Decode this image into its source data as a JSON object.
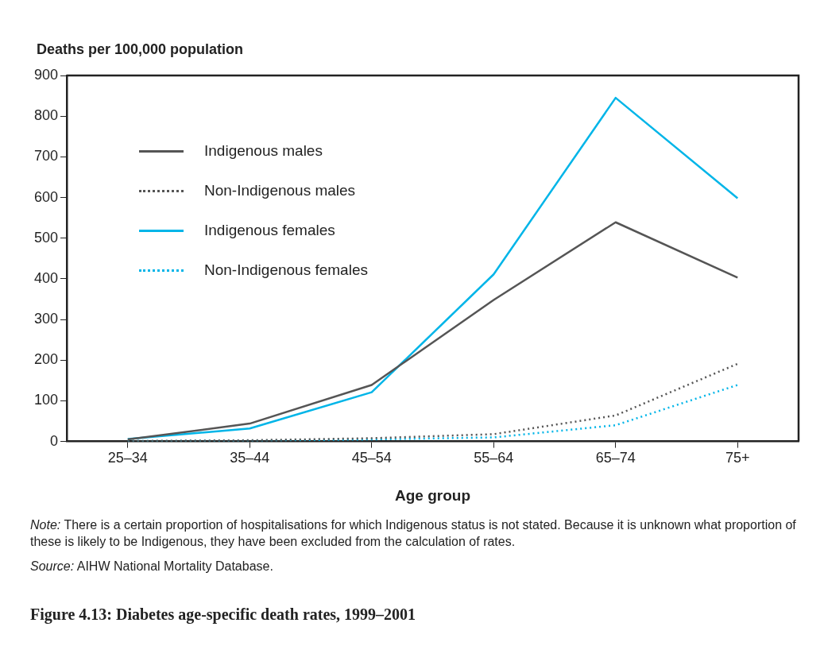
{
  "chart_data": {
    "type": "line",
    "title": "Figure 4.13: Diabetes age-specific death rates, 1999–2001",
    "ylabel": "Deaths per 100,000 population",
    "xlabel": "Age group",
    "categories": [
      "25–34",
      "35–44",
      "45–54",
      "55–64",
      "65–74",
      "75+"
    ],
    "series": [
      {
        "name": "Indigenous males",
        "color": "#555555",
        "line_style": "solid",
        "values": [
          5,
          44,
          139,
          348,
          539,
          403
        ]
      },
      {
        "name": "Non-Indigenous males",
        "color": "#555555",
        "line_style": "dotted",
        "values": [
          1,
          3,
          8,
          18,
          64,
          191
        ]
      },
      {
        "name": "Indigenous females",
        "color": "#00b5e8",
        "line_style": "solid",
        "values": [
          6,
          32,
          121,
          411,
          845,
          598
        ]
      },
      {
        "name": "Non-Indigenous females",
        "color": "#00b5e8",
        "line_style": "dotted",
        "values": [
          1,
          2,
          5,
          10,
          40,
          139
        ]
      }
    ],
    "ylim": [
      0,
      900
    ],
    "yticks": [
      0,
      100,
      200,
      300,
      400,
      500,
      600,
      700,
      800,
      900
    ],
    "grid": false,
    "legend": "top left",
    "marker": "none",
    "annotations": [
      "Note: There is a certain proportion of hospitalisations for which Indigenous status is not stated. Because it is unknown what proportion of these is likely to be Indigenous, they have been excluded from the calculation of rates.",
      "Source: AIHW National Mortality Database."
    ]
  }
}
